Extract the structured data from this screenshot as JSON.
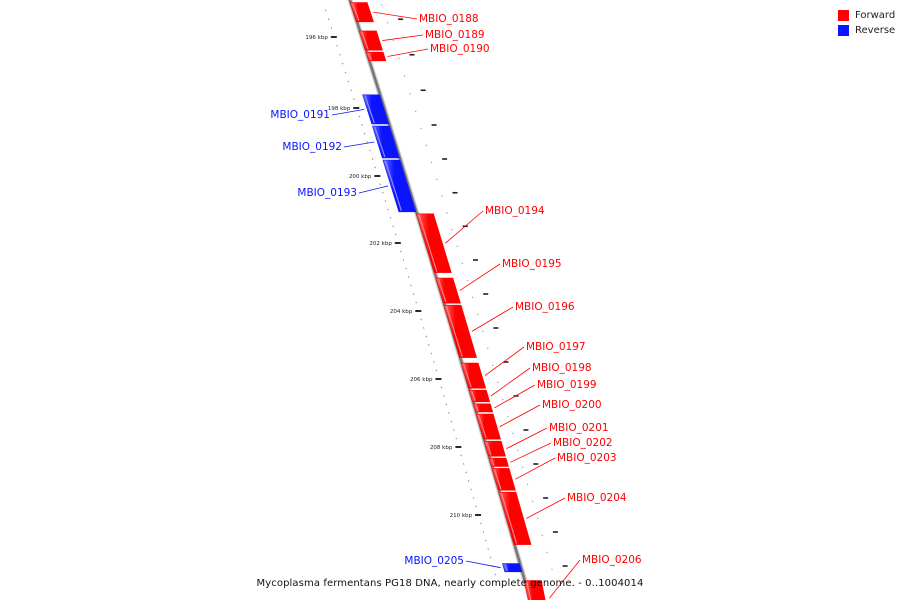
{
  "legend": {
    "forward": {
      "label": "Forward",
      "color": "#ff0000"
    },
    "reverse": {
      "label": "Reverse",
      "color": "#0a14ff"
    }
  },
  "caption": "Mycoplasma fermentans PG18 DNA, nearly complete genome. - 0..1004014",
  "ticks": [
    {
      "kbp": 196,
      "label": "196 kbp"
    },
    {
      "kbp": 198,
      "label": "198 kbp"
    },
    {
      "kbp": 200,
      "label": "200 kbp"
    },
    {
      "kbp": 202,
      "label": "202 kbp"
    },
    {
      "kbp": 204,
      "label": "204 kbp"
    },
    {
      "kbp": 206,
      "label": "206 kbp"
    },
    {
      "kbp": 208,
      "label": "208 kbp"
    },
    {
      "kbp": 210,
      "label": "210 kbp"
    }
  ],
  "genes": [
    {
      "name": "MBIO_0188",
      "strand": "forward",
      "start_kbp": 195.0,
      "end_kbp": 195.6
    },
    {
      "name": "MBIO_0189",
      "strand": "forward",
      "start_kbp": 195.8,
      "end_kbp": 196.4
    },
    {
      "name": "MBIO_0190",
      "strand": "forward",
      "start_kbp": 196.4,
      "end_kbp": 196.7
    },
    {
      "name": "MBIO_0191",
      "strand": "reverse",
      "start_kbp": 197.6,
      "end_kbp": 198.5
    },
    {
      "name": "MBIO_0192",
      "strand": "reverse",
      "start_kbp": 198.5,
      "end_kbp": 199.5
    },
    {
      "name": "MBIO_0193",
      "strand": "reverse",
      "start_kbp": 199.5,
      "end_kbp": 201.1
    },
    {
      "name": "MBIO_0194",
      "strand": "forward",
      "start_kbp": 201.1,
      "end_kbp": 202.9
    },
    {
      "name": "MBIO_0195",
      "strand": "forward",
      "start_kbp": 203.0,
      "end_kbp": 203.8
    },
    {
      "name": "MBIO_0196",
      "strand": "forward",
      "start_kbp": 203.8,
      "end_kbp": 205.4
    },
    {
      "name": "MBIO_0197",
      "strand": "forward",
      "start_kbp": 205.5,
      "end_kbp": 206.3
    },
    {
      "name": "MBIO_0198",
      "strand": "forward",
      "start_kbp": 206.3,
      "end_kbp": 206.7
    },
    {
      "name": "MBIO_0199",
      "strand": "forward",
      "start_kbp": 206.7,
      "end_kbp": 207.0
    },
    {
      "name": "MBIO_0200",
      "strand": "forward",
      "start_kbp": 207.0,
      "end_kbp": 207.8
    },
    {
      "name": "MBIO_0201",
      "strand": "forward",
      "start_kbp": 207.8,
      "end_kbp": 208.3
    },
    {
      "name": "MBIO_0202",
      "strand": "forward",
      "start_kbp": 208.3,
      "end_kbp": 208.6
    },
    {
      "name": "MBIO_0203",
      "strand": "forward",
      "start_kbp": 208.6,
      "end_kbp": 209.3
    },
    {
      "name": "MBIO_0204",
      "strand": "forward",
      "start_kbp": 209.3,
      "end_kbp": 210.9
    },
    {
      "name": "MBIO_0205",
      "strand": "reverse",
      "start_kbp": 211.4,
      "end_kbp": 211.7
    },
    {
      "name": "MBIO_0206",
      "strand": "forward",
      "start_kbp": 211.9,
      "end_kbp": 213.0
    }
  ]
}
